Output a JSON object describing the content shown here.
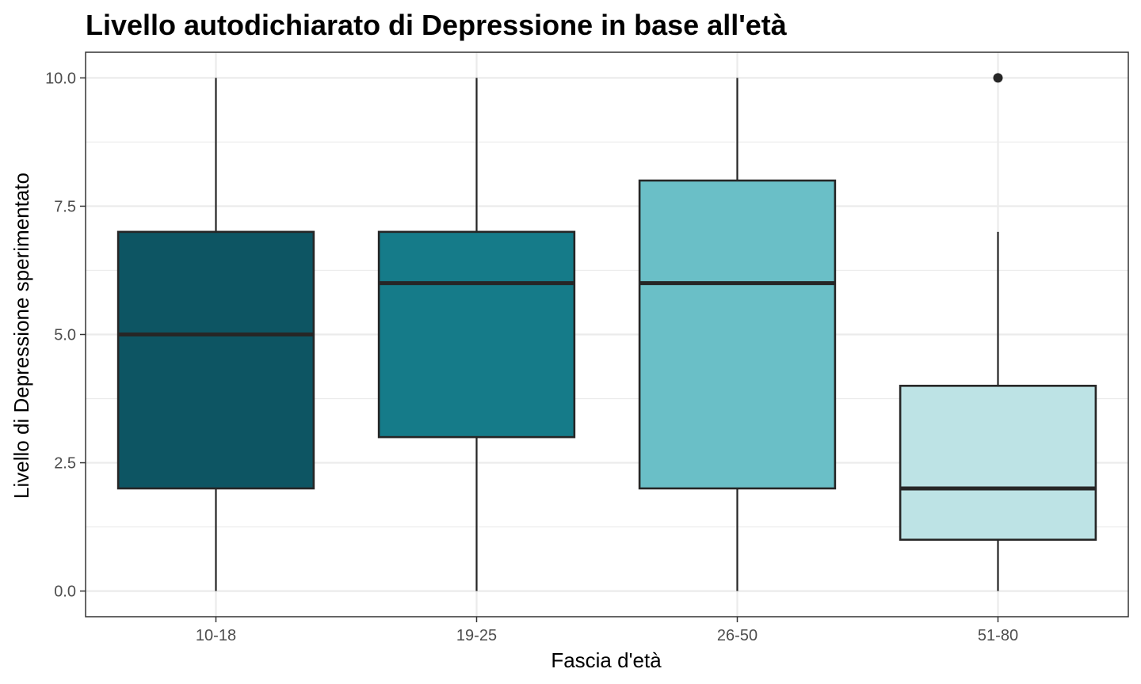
{
  "chart_data": {
    "type": "boxplot",
    "title": "Livello autodichiarato di Depressione in base all'età",
    "xlabel": "Fascia d'età",
    "ylabel": "Livello di Depressione sperimentato",
    "ylim": [
      -0.5,
      10.5
    ],
    "yticks": [
      0.0,
      2.5,
      5.0,
      7.5,
      10.0
    ],
    "ytick_labels": [
      "0.0",
      "2.5",
      "5.0",
      "7.5",
      "10.0"
    ],
    "grid": true,
    "legend": "none",
    "categories": [
      "10-18",
      "19-25",
      "26-50",
      "51-80"
    ],
    "boxes": [
      {
        "category": "10-18",
        "whisker_low": 0,
        "q1": 2,
        "median": 5,
        "q3": 7,
        "whisker_high": 10,
        "outliers": [],
        "color": "#0d5563"
      },
      {
        "category": "19-25",
        "whisker_low": 0,
        "q1": 3,
        "median": 6,
        "q3": 7,
        "whisker_high": 10,
        "outliers": [],
        "color": "#157b89"
      },
      {
        "category": "26-50",
        "whisker_low": 0,
        "q1": 2,
        "median": 6,
        "q3": 8,
        "whisker_high": 10,
        "outliers": [],
        "color": "#6abfc7"
      },
      {
        "category": "51-80",
        "whisker_low": 0,
        "q1": 1,
        "median": 2,
        "q3": 4,
        "whisker_high": 7,
        "outliers": [
          10
        ],
        "color": "#bde3e5"
      }
    ]
  }
}
